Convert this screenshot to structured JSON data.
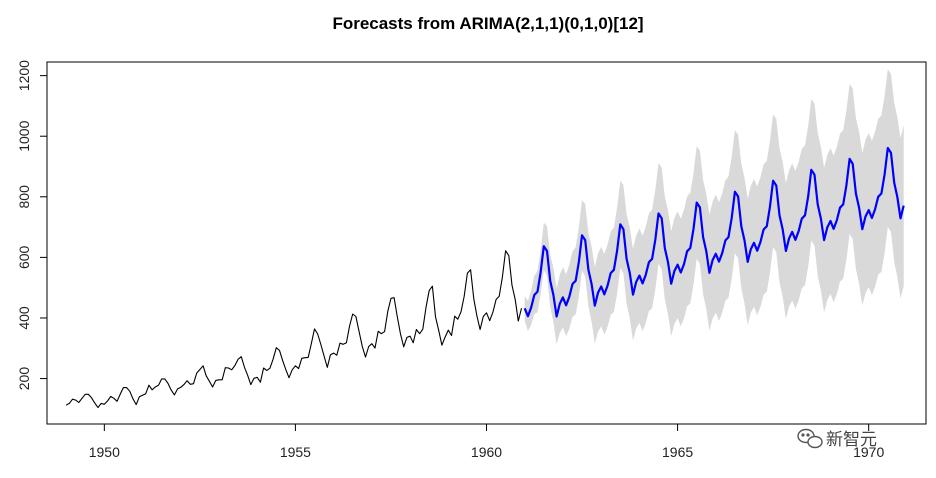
{
  "chart_data": {
    "type": "line",
    "title": "Forecasts from ARIMA(2,1,1)(0,1,0)[12]",
    "xlabel": "",
    "ylabel": "",
    "xlim": [
      1948.5,
      1971.5
    ],
    "ylim": [
      50,
      1245
    ],
    "x_ticks": [
      1950,
      1955,
      1960,
      1965,
      1970
    ],
    "y_ticks": [
      200,
      400,
      600,
      800,
      1000,
      1200
    ],
    "grid": false,
    "series": [
      {
        "name": "observed",
        "color": "#000000",
        "start": 1949,
        "frequency": 12,
        "values": [
          112,
          118,
          132,
          129,
          121,
          135,
          148,
          148,
          136,
          119,
          104,
          118,
          115,
          126,
          141,
          135,
          125,
          149,
          170,
          170,
          158,
          133,
          114,
          140,
          145,
          150,
          178,
          163,
          172,
          178,
          199,
          199,
          184,
          162,
          146,
          166,
          171,
          180,
          193,
          181,
          183,
          218,
          230,
          242,
          209,
          191,
          172,
          194,
          196,
          196,
          236,
          235,
          229,
          243,
          264,
          272,
          237,
          211,
          180,
          201,
          204,
          188,
          235,
          227,
          234,
          264,
          302,
          293,
          259,
          229,
          203,
          229,
          242,
          233,
          267,
          269,
          270,
          315,
          364,
          347,
          312,
          274,
          237,
          278,
          284,
          277,
          317,
          313,
          318,
          374,
          413,
          405,
          355,
          306,
          271,
          306,
          315,
          301,
          356,
          348,
          355,
          422,
          465,
          467,
          404,
          347,
          305,
          336,
          340,
          318,
          362,
          348,
          363,
          435,
          491,
          505,
          404,
          359,
          310,
          337,
          360,
          342,
          406,
          396,
          420,
          472,
          548,
          559,
          463,
          407,
          362,
          405,
          417,
          391,
          419,
          461,
          472,
          535,
          622,
          606,
          508,
          461,
          390,
          432
        ]
      },
      {
        "name": "forecast",
        "color": "#0000ff",
        "start": 1961,
        "frequency": 12,
        "pattern": [
          -15,
          -41,
          -13,
          29,
          40,
          103,
          190,
          174,
          76,
          29,
          -42,
          0
        ],
        "base_start": 447,
        "base_step": 36,
        "interval_growth_per_year": 58
      }
    ],
    "interval": {
      "label": "95% prediction interval",
      "color": "#d9d9d9"
    }
  },
  "watermark": {
    "text": "新智元",
    "icon": "wechat-icon"
  }
}
